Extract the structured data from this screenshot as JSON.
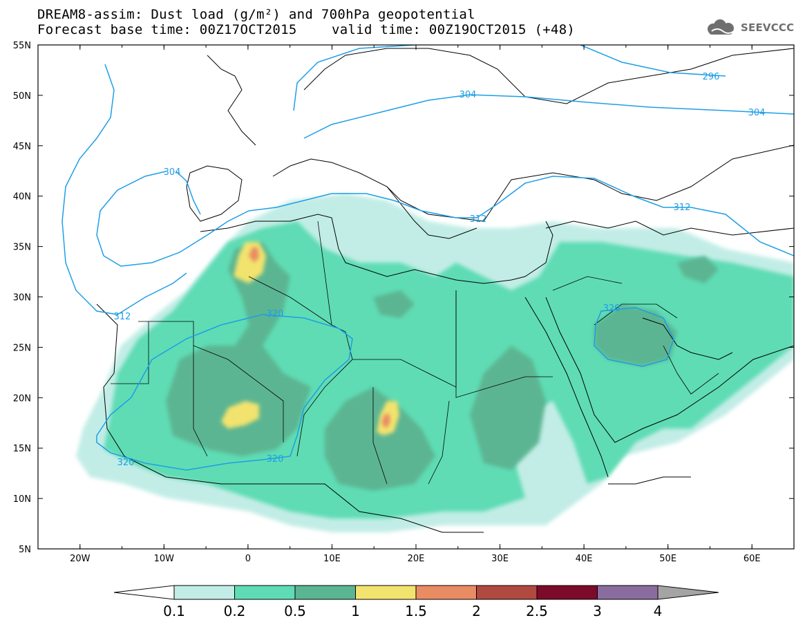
{
  "title": {
    "line1": "DREAM8-assim: Dust load (g/m²) and 700hPa geopotential",
    "line2_left": "Forecast base time: 00Z17OCT2015",
    "line2_right": "valid time: 00Z19OCT2015 (+48)"
  },
  "logo": {
    "text": "SEEVCCC",
    "icon": "cloud-icon"
  },
  "map": {
    "lon_range": [
      -25,
      65
    ],
    "lat_range": [
      5,
      55
    ],
    "lon_ticks": [
      "20W",
      "10W",
      "0",
      "10E",
      "20E",
      "30E",
      "40E",
      "50E",
      "60E"
    ],
    "lat_ticks": [
      "55N",
      "50N",
      "45N",
      "40N",
      "35N",
      "30N",
      "25N",
      "20N",
      "15N",
      "10N",
      "5N"
    ],
    "contour_color": "#1e9ee6",
    "contour_labels": [
      "296",
      "304",
      "304",
      "304",
      "312",
      "312",
      "312",
      "320",
      "320",
      "320",
      "320"
    ]
  },
  "colorbar": {
    "colors": [
      "#c2ede6",
      "#5fdcb4",
      "#5bb592",
      "#f2e36e",
      "#e98c63",
      "#b0493f",
      "#7c0a2b",
      "#8a6d9e"
    ],
    "labels": [
      "0.1",
      "0.2",
      "0.5",
      "1",
      "1.5",
      "2",
      "2.5",
      "3",
      "4"
    ],
    "under_color": "#ffffff",
    "over_color": "#a4a4a4"
  }
}
